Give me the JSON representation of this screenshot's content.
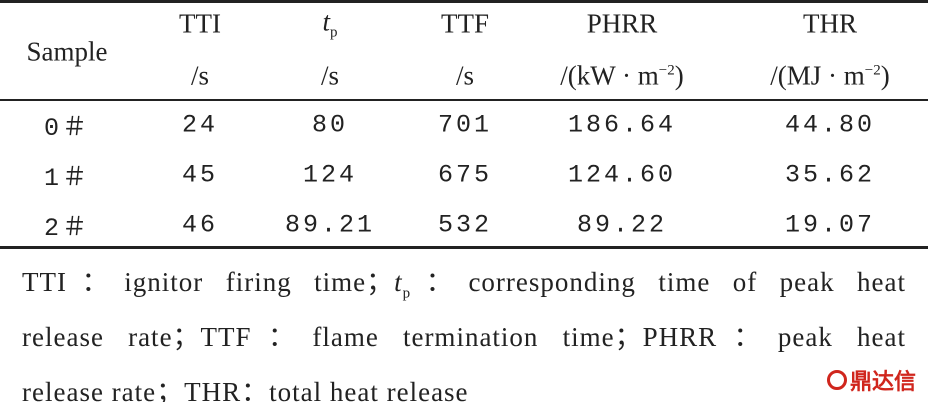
{
  "table": {
    "header": {
      "sample": "Sample",
      "columns": [
        {
          "name": [
            "TTI"
          ],
          "unit": [
            "/s"
          ]
        },
        {
          "name": [
            {
              "italic": "t",
              "sub": "p"
            }
          ],
          "unit": [
            "/s"
          ]
        },
        {
          "name": [
            "TTF"
          ],
          "unit": [
            "/s"
          ]
        },
        {
          "name": [
            "PHRR"
          ],
          "unit": [
            "/(kW · m",
            {
              "sup": "−2"
            },
            ")"
          ]
        },
        {
          "name": [
            "THR"
          ],
          "unit": [
            "/(MJ · m",
            {
              "sup": "−2"
            },
            ")"
          ]
        }
      ]
    },
    "rows": [
      [
        "0＃",
        "24",
        "80",
        "701",
        "186.64",
        "44.80"
      ],
      [
        "1＃",
        "45",
        "124",
        "675",
        "124.60",
        "35.62"
      ],
      [
        "2＃",
        "46",
        "89.21",
        "532",
        "89.22",
        "19.07"
      ]
    ]
  },
  "footnote": [
    [
      "TTI：ignitor firing time；",
      {
        "italic": "t",
        "sub": "p"
      },
      "：corresponding time of peak heat"
    ],
    [
      "release rate；TTF：flame termination time；PHRR：peak heat"
    ],
    [
      "release rate；THR：total heat release"
    ]
  ],
  "watermark": "鼎达信"
}
